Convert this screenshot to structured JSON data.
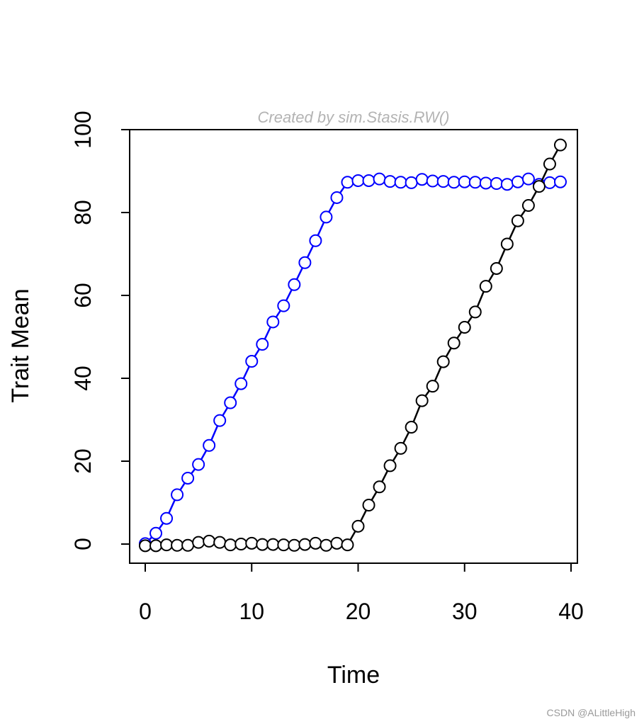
{
  "chart_data": {
    "type": "line",
    "subtitle": "Created by sim.Stasis.RW()",
    "xlabel": "Time",
    "ylabel": "Trait Mean",
    "xlim": [
      0,
      40
    ],
    "ylim": [
      0,
      100
    ],
    "x_ticks": [
      "0",
      "10",
      "20",
      "30",
      "40"
    ],
    "y_ticks": [
      "0",
      "20",
      "40",
      "60",
      "80",
      "100"
    ],
    "grid": false,
    "legend": "none",
    "x": [
      0,
      1,
      2,
      3,
      4,
      5,
      6,
      7,
      8,
      9,
      10,
      11,
      12,
      13,
      14,
      15,
      16,
      17,
      18,
      19,
      20,
      21,
      22,
      23,
      24,
      25,
      26,
      27,
      28,
      29,
      30,
      31,
      32,
      33,
      34,
      35,
      36,
      37,
      38,
      39
    ],
    "series": [
      {
        "name": "blue",
        "color": "#0000ff",
        "values": [
          0.1,
          2.6,
          6.2,
          11.9,
          15.9,
          19.2,
          23.8,
          29.8,
          34.1,
          38.7,
          44.1,
          48.2,
          53.6,
          57.5,
          62.6,
          67.9,
          73.2,
          78.9,
          83.6,
          87.3,
          87.7,
          87.7,
          88.1,
          87.5,
          87.3,
          87.2,
          88.0,
          87.6,
          87.5,
          87.3,
          87.4,
          87.3,
          87.1,
          87.0,
          86.8,
          87.4,
          88.1,
          86.8,
          87.2,
          87.4
        ]
      },
      {
        "name": "black",
        "color": "#000000",
        "values": [
          -0.4,
          -0.4,
          -0.2,
          -0.3,
          -0.3,
          0.4,
          0.7,
          0.4,
          -0.2,
          0.0,
          0.2,
          -0.1,
          -0.1,
          -0.2,
          -0.3,
          -0.1,
          0.2,
          -0.3,
          0.2,
          -0.2,
          4.3,
          9.4,
          13.8,
          18.9,
          23.1,
          28.2,
          34.6,
          38.1,
          44.0,
          48.5,
          52.3,
          56.0,
          62.2,
          66.5,
          72.4,
          78.0,
          81.7,
          86.3,
          91.7,
          96.3
        ]
      }
    ]
  },
  "watermark": "CSDN @ALittleHigh"
}
